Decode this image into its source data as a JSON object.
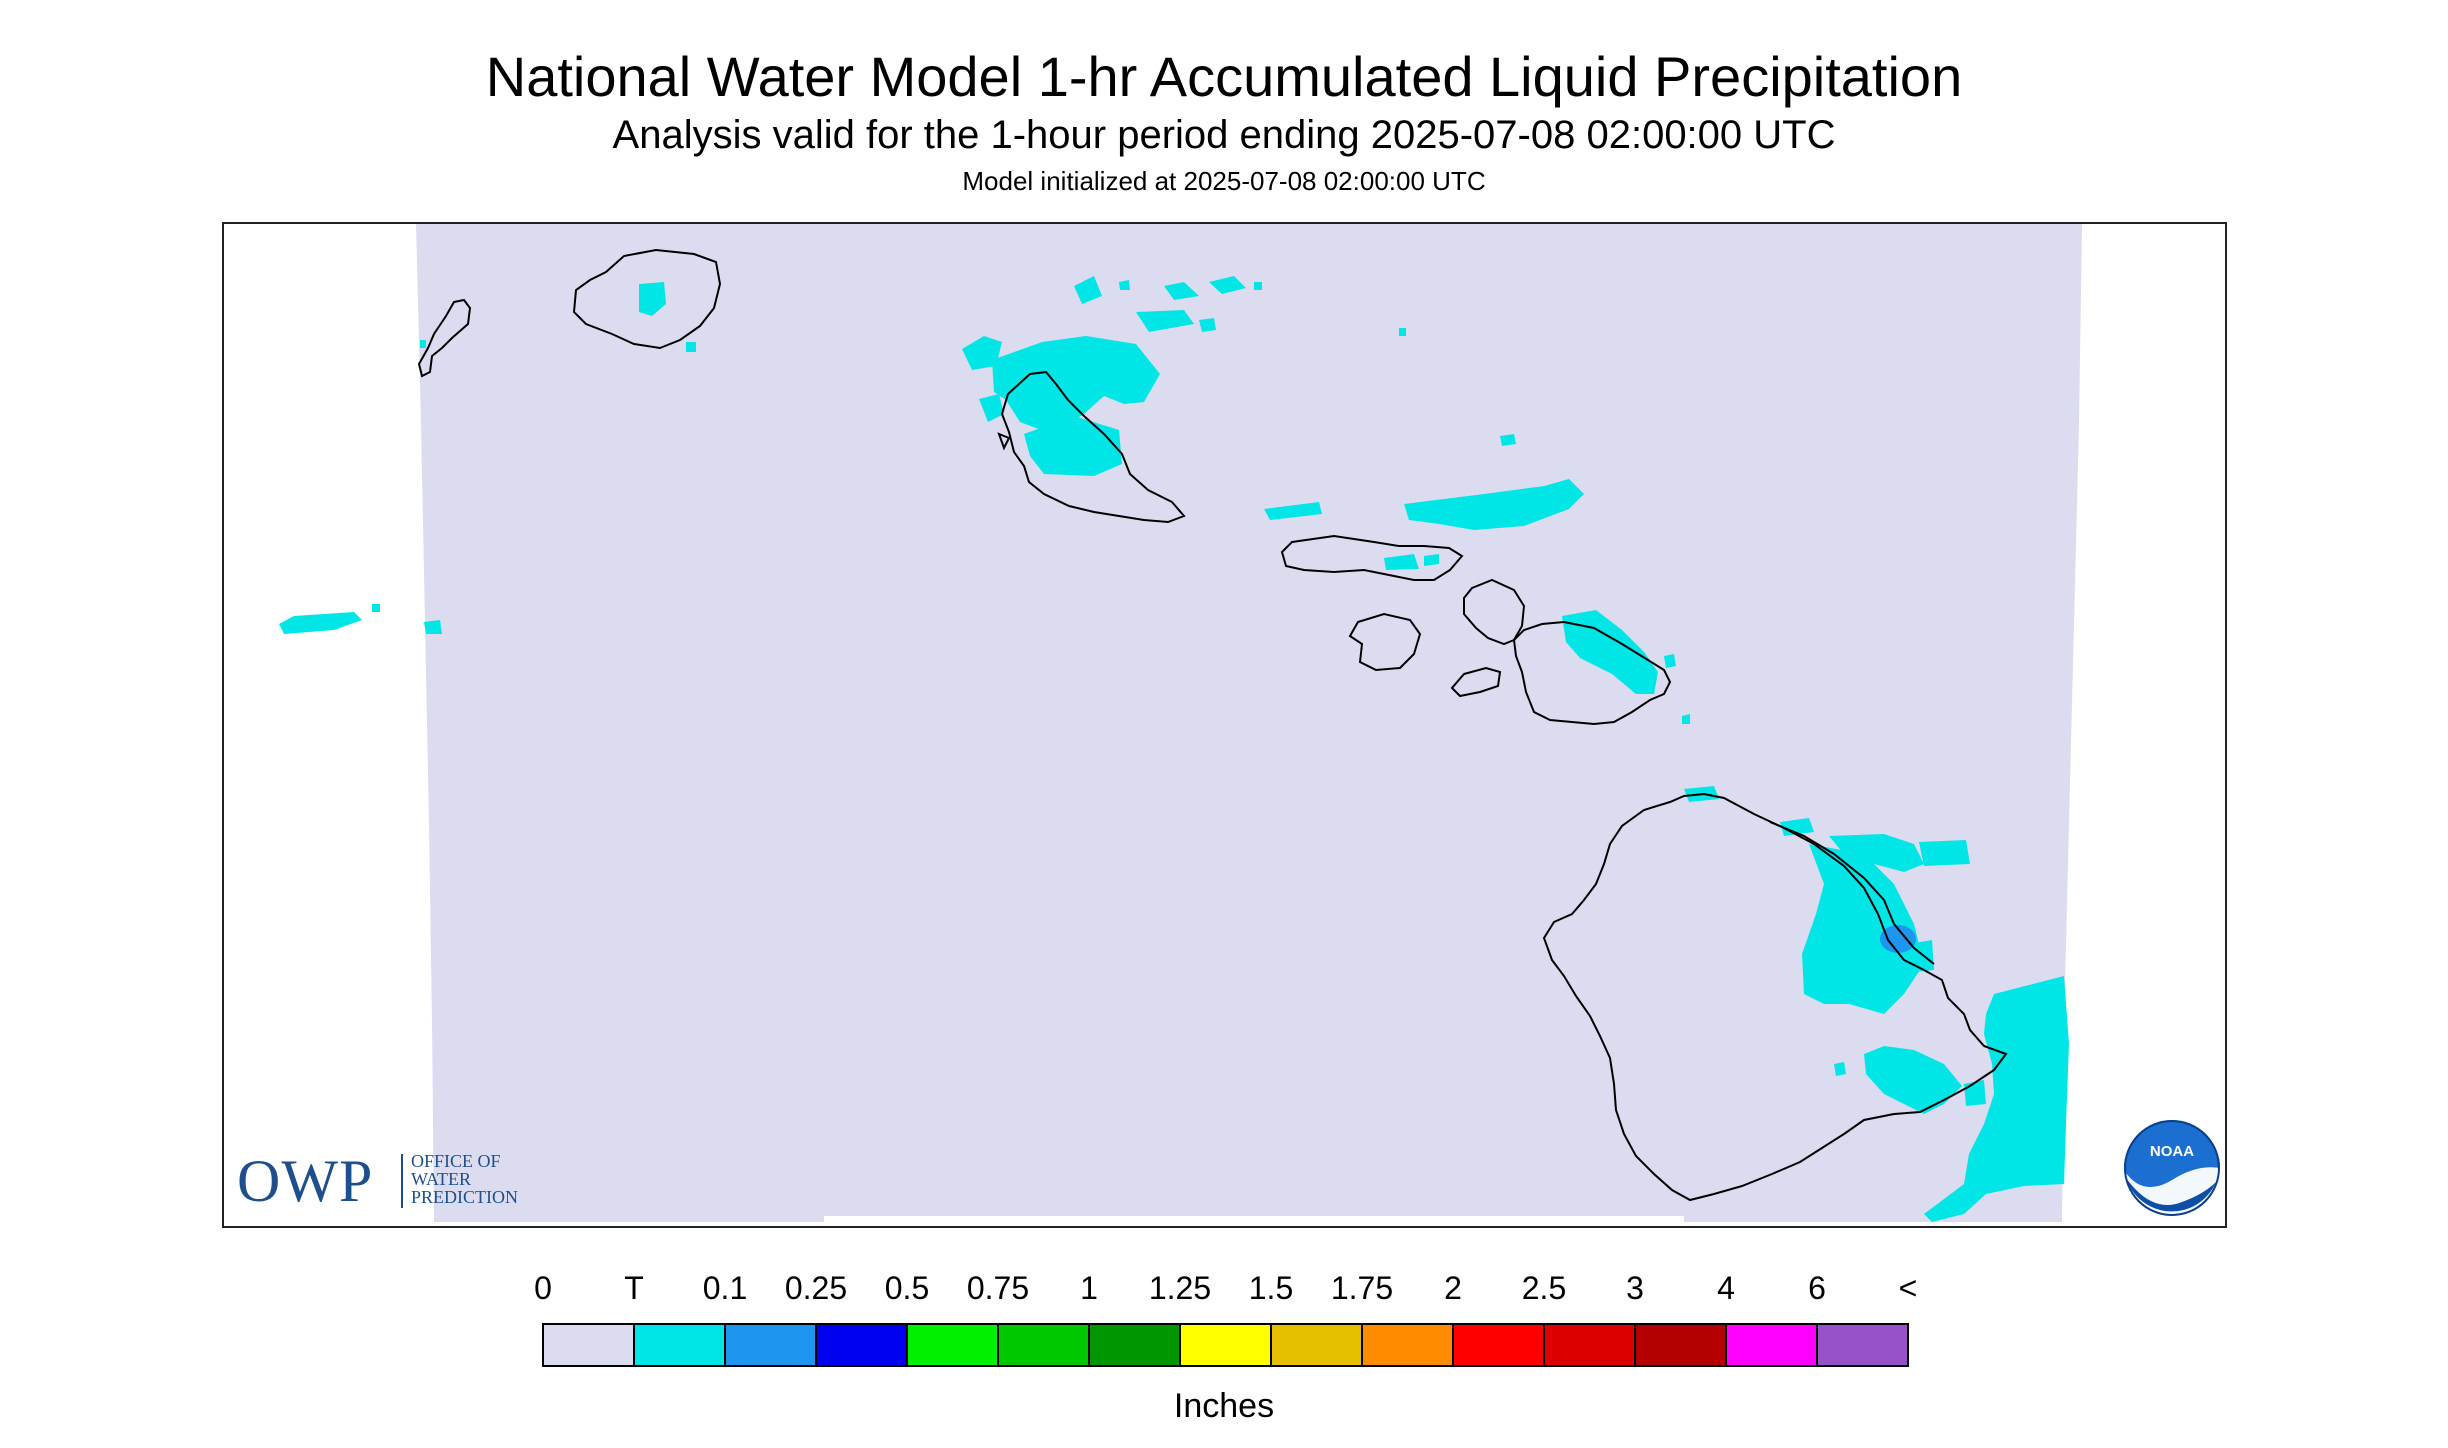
{
  "header": {
    "title": "National Water Model 1-hr Accumulated Liquid Precipitation",
    "subtitle": "Analysis valid for the 1-hour period ending 2025-07-08 02:00:00 UTC",
    "init": "Model initialized at 2025-07-08 02:00:00 UTC"
  },
  "map": {
    "background_color": "#dcdcf0",
    "coast_color": "#000000",
    "precip_color": "#00e6e6",
    "heavy_color": "#1e96f0"
  },
  "logo": {
    "owp_big": "OWP",
    "owp_small": "OFFICE OF\nWATER\nPREDICTION",
    "noaa_text": "NOAA"
  },
  "legend": {
    "labels": [
      "0",
      "T",
      "0.1",
      "0.25",
      "0.5",
      "0.75",
      "1",
      "1.25",
      "1.5",
      "1.75",
      "2",
      "2.5",
      "3",
      "4",
      "6",
      "<"
    ],
    "colors": [
      "#dcdcf0",
      "#00e6e6",
      "#1e96f0",
      "#0000f0",
      "#00f000",
      "#00c800",
      "#009600",
      "#ffff00",
      "#e6bf00",
      "#ff8c00",
      "#ff0000",
      "#dc0000",
      "#b40000",
      "#ff00ff",
      "#9650c8"
    ],
    "units": "Inches"
  }
}
